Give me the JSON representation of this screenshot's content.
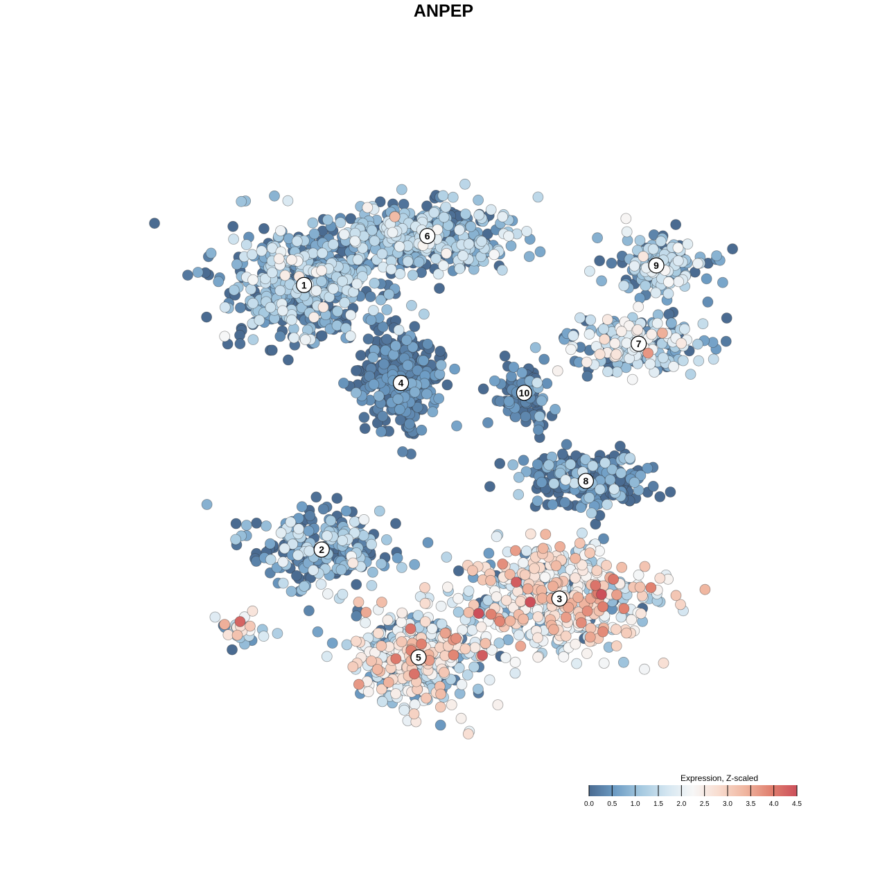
{
  "chart_data": {
    "type": "scatter",
    "title": "ANPEP",
    "xlabel": "",
    "ylabel": "",
    "grid": false,
    "axes_visible": false,
    "colorbar": {
      "title": "Expression, Z-scaled",
      "min": 0.0,
      "max": 4.5,
      "ticks": [
        "0.0",
        "0.5",
        "1.0",
        "1.5",
        "2.0",
        "2.5",
        "3.0",
        "3.5",
        "4.0",
        "4.5"
      ],
      "colors": [
        "#4a6b91",
        "#6d9cc4",
        "#a5c9e0",
        "#d4e6f1",
        "#f7f7f7",
        "#f8dccf",
        "#f0b6a0",
        "#e0806f",
        "#cc4f5a"
      ],
      "placement": "bottom-right"
    },
    "clusters": [
      {
        "label": "1",
        "x": -9.0,
        "y": 10.0,
        "spread": [
          4.0,
          2.6
        ],
        "n": 480,
        "mean_expr": 1.05,
        "sd_expr": 0.55
      },
      {
        "label": "6",
        "x": -2.0,
        "y": 12.5,
        "spread": [
          4.6,
          1.5
        ],
        "n": 420,
        "mean_expr": 1.15,
        "sd_expr": 0.55
      },
      {
        "label": "4",
        "x": -3.5,
        "y": 5.0,
        "spread": [
          2.0,
          2.2
        ],
        "n": 320,
        "mean_expr": 0.25,
        "sd_expr": 0.35
      },
      {
        "label": "10",
        "x": 3.5,
        "y": 4.5,
        "spread": [
          1.4,
          1.6
        ],
        "n": 90,
        "mean_expr": 0.3,
        "sd_expr": 0.4
      },
      {
        "label": "9",
        "x": 11.0,
        "y": 11.0,
        "spread": [
          2.7,
          1.2
        ],
        "n": 150,
        "mean_expr": 1.2,
        "sd_expr": 0.5
      },
      {
        "label": "7",
        "x": 10.0,
        "y": 7.0,
        "spread": [
          3.8,
          1.2
        ],
        "n": 220,
        "mean_expr": 1.5,
        "sd_expr": 0.9
      },
      {
        "label": "8",
        "x": 7.0,
        "y": 0.0,
        "spread": [
          3.0,
          1.3
        ],
        "n": 200,
        "mean_expr": 0.55,
        "sd_expr": 0.55
      },
      {
        "label": "2",
        "x": -8.0,
        "y": -3.5,
        "spread": [
          3.6,
          1.8
        ],
        "n": 230,
        "mean_expr": 0.8,
        "sd_expr": 0.6
      },
      {
        "label": "3",
        "x": 5.5,
        "y": -6.0,
        "spread": [
          4.6,
          2.4
        ],
        "n": 520,
        "mean_expr": 2.3,
        "sd_expr": 0.85
      },
      {
        "label": "5",
        "x": -2.5,
        "y": -9.0,
        "spread": [
          3.4,
          2.2
        ],
        "n": 420,
        "mean_expr": 2.0,
        "sd_expr": 0.9
      },
      {
        "label": "",
        "x": -12.5,
        "y": -7.5,
        "spread": [
          1.4,
          0.7
        ],
        "n": 30,
        "mean_expr": 2.6,
        "sd_expr": 1.2
      }
    ],
    "x_range": [
      -18,
      18
    ],
    "y_range": [
      -14,
      18
    ]
  }
}
